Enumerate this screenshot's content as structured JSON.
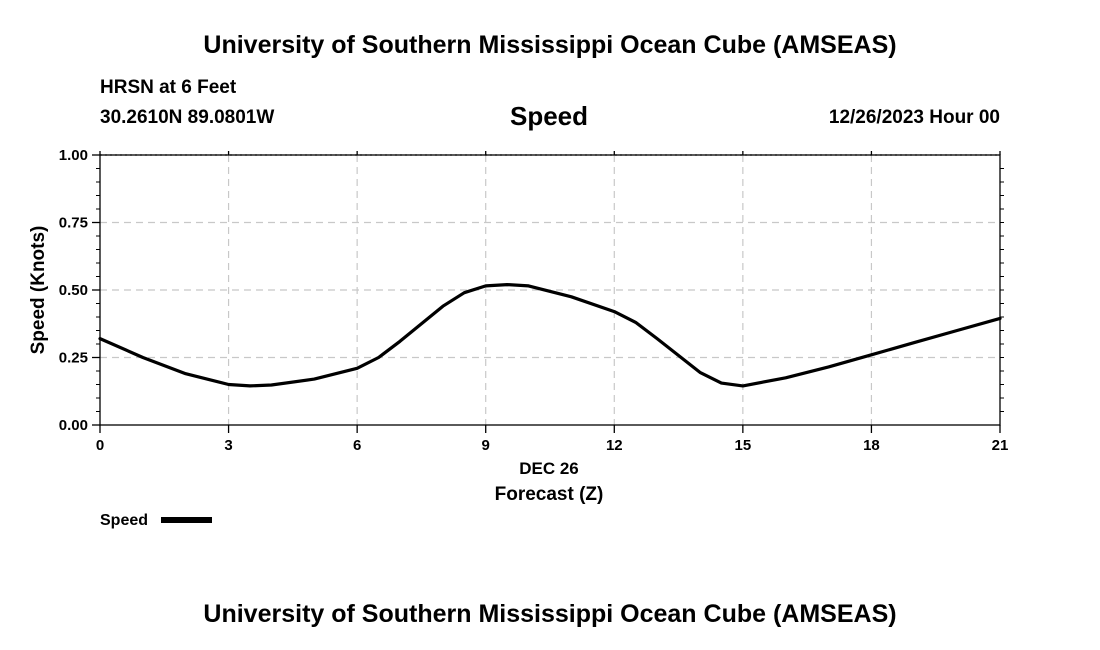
{
  "header": {
    "title": "University of Southern Mississippi Ocean Cube (AMSEAS)",
    "station": "HRSN at 6 Feet",
    "coords": "30.2610N  89.0801W",
    "datetime": "12/26/2023 Hour 00"
  },
  "footer": {
    "title": "University of Southern Mississippi Ocean Cube (AMSEAS)"
  },
  "chart_data": {
    "type": "line",
    "title": "Speed",
    "xlabel": "Forecast (Z)",
    "date_label": "DEC 26",
    "ylabel": "Speed (Knots)",
    "xlim": [
      0,
      21
    ],
    "ylim": [
      0,
      1
    ],
    "x_ticks": [
      0,
      3,
      6,
      9,
      12,
      15,
      18,
      21
    ],
    "y_ticks": [
      0,
      0.25,
      0.5,
      0.75,
      1.0
    ],
    "y_tick_labels": [
      "0.00",
      "0.25",
      "0.50",
      "0.75",
      "1.00"
    ],
    "grid": true,
    "series": [
      {
        "name": "Speed",
        "color": "#000000",
        "x": [
          0,
          1,
          2,
          3,
          3.5,
          4,
          5,
          6,
          6.5,
          7,
          8,
          8.5,
          9,
          9.5,
          10,
          11,
          12,
          12.5,
          13,
          14,
          14.5,
          15,
          16,
          17,
          18,
          19,
          20,
          21
        ],
        "y": [
          0.32,
          0.25,
          0.19,
          0.15,
          0.145,
          0.148,
          0.17,
          0.21,
          0.25,
          0.31,
          0.44,
          0.49,
          0.515,
          0.52,
          0.515,
          0.475,
          0.42,
          0.38,
          0.32,
          0.195,
          0.155,
          0.145,
          0.175,
          0.215,
          0.26,
          0.305,
          0.35,
          0.395
        ]
      }
    ],
    "legend": {
      "label": "Speed",
      "position": "bottom-left"
    }
  }
}
